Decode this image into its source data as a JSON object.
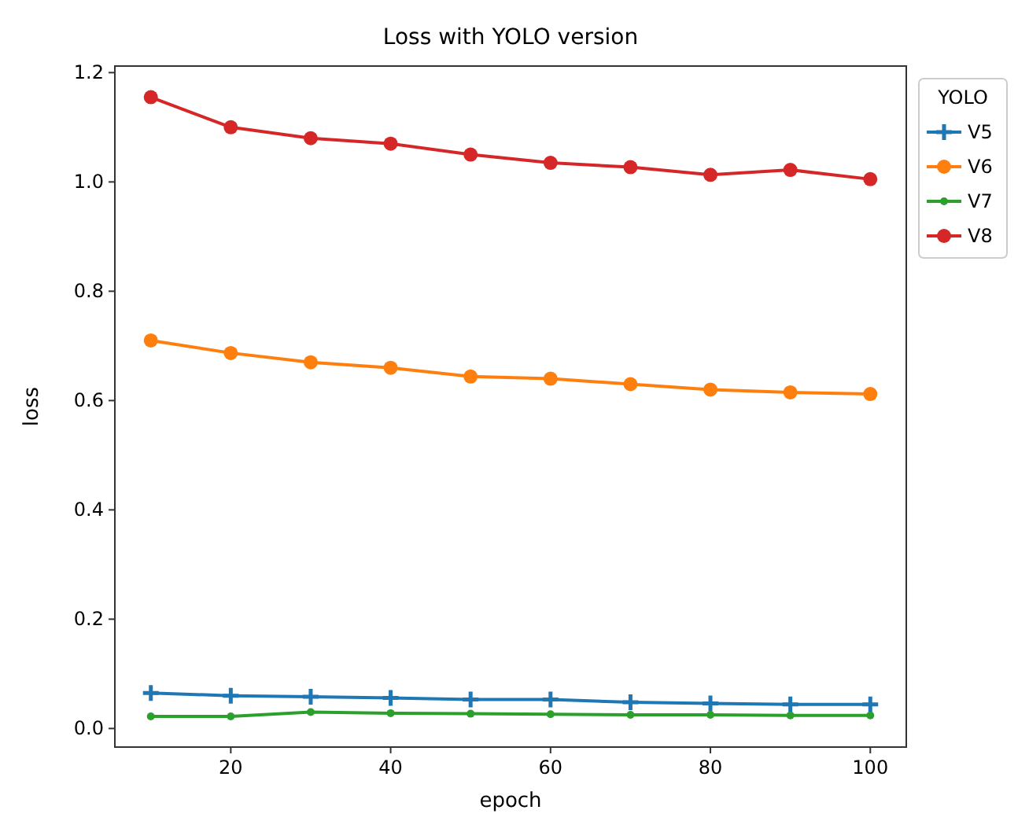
{
  "chart_data": {
    "type": "line",
    "title": "Loss with YOLO version",
    "xlabel": "epoch",
    "ylabel": "loss",
    "legend_title": "YOLO",
    "legend": "right",
    "grid": false,
    "x": [
      10,
      20,
      30,
      40,
      50,
      60,
      70,
      80,
      90,
      100
    ],
    "xlim": [
      5.5,
      104.5
    ],
    "xticks": [
      20,
      40,
      60,
      80,
      100
    ],
    "ylim": [
      -0.034,
      1.212
    ],
    "yticks": [
      {
        "value": 0,
        "label": "0.0"
      },
      0.2,
      0.4,
      0.6,
      0.8,
      {
        "value": 1,
        "label": "1.0"
      },
      1.2
    ],
    "series": [
      {
        "name": "V5",
        "color": "#1f77b4",
        "marker": "cross",
        "values": [
          0.065,
          0.06,
          0.058,
          0.056,
          0.053,
          0.053,
          0.048,
          0.046,
          0.044,
          0.044
        ]
      },
      {
        "name": "V6",
        "color": "#ff7f0e",
        "marker": "circle",
        "values": [
          0.71,
          0.687,
          0.67,
          0.66,
          0.644,
          0.64,
          0.63,
          0.62,
          0.615,
          0.612
        ]
      },
      {
        "name": "V7",
        "color": "#2ca02c",
        "marker": "circle",
        "values": [
          0.022,
          0.022,
          0.03,
          0.028,
          0.027,
          0.026,
          0.025,
          0.025,
          0.024,
          0.024
        ]
      },
      {
        "name": "V8",
        "color": "#d62728",
        "marker": "circle",
        "values": [
          1.155,
          1.1,
          1.08,
          1.07,
          1.05,
          1.035,
          1.027,
          1.013,
          1.022,
          1.005
        ]
      }
    ]
  }
}
